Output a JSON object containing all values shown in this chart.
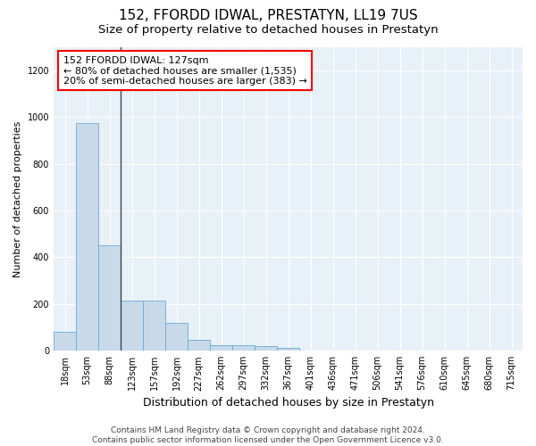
{
  "title": "152, FFORDD IDWAL, PRESTATYN, LL19 7US",
  "subtitle": "Size of property relative to detached houses in Prestatyn",
  "xlabel": "Distribution of detached houses by size in Prestatyn",
  "ylabel": "Number of detached properties",
  "bar_color": "#c8d9ea",
  "bar_edge_color": "#6aaad4",
  "categories": [
    "18sqm",
    "53sqm",
    "88sqm",
    "123sqm",
    "157sqm",
    "192sqm",
    "227sqm",
    "262sqm",
    "297sqm",
    "332sqm",
    "367sqm",
    "401sqm",
    "436sqm",
    "471sqm",
    "506sqm",
    "541sqm",
    "576sqm",
    "610sqm",
    "645sqm",
    "680sqm",
    "715sqm"
  ],
  "values": [
    80,
    975,
    450,
    215,
    215,
    120,
    47,
    25,
    22,
    20,
    12,
    0,
    0,
    0,
    0,
    0,
    0,
    0,
    0,
    0,
    0
  ],
  "ylim": [
    0,
    1300
  ],
  "yticks": [
    0,
    200,
    400,
    600,
    800,
    1000,
    1200
  ],
  "annotation_line1": "152 FFORDD IDWAL: 127sqm",
  "annotation_line2": "← 80% of detached houses are smaller (1,535)",
  "annotation_line3": "20% of semi-detached houses are larger (383) →",
  "background_color": "#e8f0f8",
  "grid_color": "#ffffff",
  "footer_text": "Contains HM Land Registry data © Crown copyright and database right 2024.\nContains public sector information licensed under the Open Government Licence v3.0.",
  "title_fontsize": 11,
  "subtitle_fontsize": 9.5,
  "xlabel_fontsize": 9,
  "ylabel_fontsize": 8,
  "tick_fontsize": 7,
  "annotation_fontsize": 8,
  "footer_fontsize": 6.5
}
